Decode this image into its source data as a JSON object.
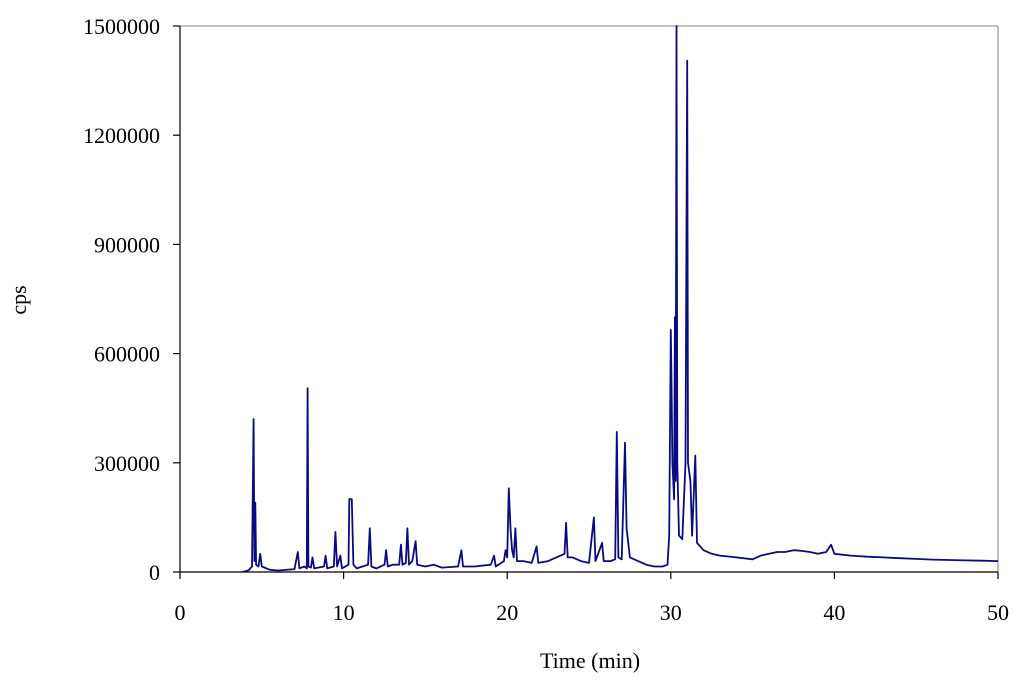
{
  "chart_data": {
    "type": "line",
    "title": "",
    "xlabel": "Time (min)",
    "ylabel": "cps",
    "xlim": [
      0,
      50
    ],
    "ylim": [
      0,
      1500000
    ],
    "xticks": [
      "0",
      "10",
      "20",
      "30",
      "40",
      "50"
    ],
    "yticks": [
      "0",
      "300000",
      "600000",
      "900000",
      "1200000",
      "1500000"
    ],
    "grid": false,
    "legend": "none",
    "colors": {
      "line": "#0b0b80",
      "frame": "#808080",
      "axis": "#000000"
    },
    "series": [
      {
        "points": [
          [
            3.8,
            0
          ],
          [
            4.0,
            2000
          ],
          [
            4.2,
            5000
          ],
          [
            4.4,
            15000
          ],
          [
            4.5,
            420000
          ],
          [
            4.55,
            30000
          ],
          [
            4.6,
            190000
          ],
          [
            4.65,
            20000
          ],
          [
            4.8,
            15000
          ],
          [
            4.9,
            50000
          ],
          [
            5.0,
            15000
          ],
          [
            5.5,
            6000
          ],
          [
            6.0,
            4000
          ],
          [
            7.0,
            8000
          ],
          [
            7.2,
            55000
          ],
          [
            7.3,
            10000
          ],
          [
            7.6,
            15000
          ],
          [
            7.75,
            10000
          ],
          [
            7.8,
            505000
          ],
          [
            7.85,
            15000
          ],
          [
            8.0,
            12000
          ],
          [
            8.1,
            40000
          ],
          [
            8.2,
            10000
          ],
          [
            8.8,
            15000
          ],
          [
            8.9,
            45000
          ],
          [
            9.0,
            10000
          ],
          [
            9.4,
            15000
          ],
          [
            9.5,
            110000
          ],
          [
            9.6,
            15000
          ],
          [
            9.8,
            45000
          ],
          [
            9.9,
            10000
          ],
          [
            10.3,
            20000
          ],
          [
            10.35,
            200000
          ],
          [
            10.45,
            200000
          ],
          [
            10.5,
            200000
          ],
          [
            10.6,
            20000
          ],
          [
            10.8,
            10000
          ],
          [
            11.5,
            20000
          ],
          [
            11.6,
            120000
          ],
          [
            11.7,
            15000
          ],
          [
            12.0,
            10000
          ],
          [
            12.5,
            20000
          ],
          [
            12.6,
            60000
          ],
          [
            12.7,
            15000
          ],
          [
            13.0,
            20000
          ],
          [
            13.4,
            20000
          ],
          [
            13.5,
            75000
          ],
          [
            13.6,
            20000
          ],
          [
            13.8,
            25000
          ],
          [
            13.9,
            120000
          ],
          [
            14.0,
            20000
          ],
          [
            14.2,
            30000
          ],
          [
            14.4,
            85000
          ],
          [
            14.5,
            20000
          ],
          [
            15.0,
            15000
          ],
          [
            15.5,
            20000
          ],
          [
            16.0,
            12000
          ],
          [
            17.0,
            15000
          ],
          [
            17.2,
            60000
          ],
          [
            17.3,
            15000
          ],
          [
            18.0,
            15000
          ],
          [
            19.0,
            20000
          ],
          [
            19.2,
            45000
          ],
          [
            19.3,
            15000
          ],
          [
            19.8,
            30000
          ],
          [
            19.9,
            60000
          ],
          [
            20.0,
            40000
          ],
          [
            20.1,
            230000
          ],
          [
            20.2,
            120000
          ],
          [
            20.3,
            60000
          ],
          [
            20.4,
            40000
          ],
          [
            20.5,
            120000
          ],
          [
            20.6,
            30000
          ],
          [
            21.0,
            30000
          ],
          [
            21.5,
            25000
          ],
          [
            21.8,
            70000
          ],
          [
            21.9,
            25000
          ],
          [
            22.5,
            30000
          ],
          [
            23.0,
            40000
          ],
          [
            23.5,
            50000
          ],
          [
            23.6,
            135000
          ],
          [
            23.7,
            40000
          ],
          [
            24.0,
            40000
          ],
          [
            24.5,
            30000
          ],
          [
            25.0,
            25000
          ],
          [
            25.3,
            150000
          ],
          [
            25.4,
            30000
          ],
          [
            25.8,
            80000
          ],
          [
            25.9,
            30000
          ],
          [
            26.3,
            30000
          ],
          [
            26.6,
            35000
          ],
          [
            26.7,
            385000
          ],
          [
            26.8,
            40000
          ],
          [
            27.0,
            35000
          ],
          [
            27.2,
            355000
          ],
          [
            27.3,
            120000
          ],
          [
            27.5,
            40000
          ],
          [
            28.0,
            30000
          ],
          [
            28.5,
            20000
          ],
          [
            29.0,
            15000
          ],
          [
            29.5,
            15000
          ],
          [
            29.8,
            20000
          ],
          [
            29.9,
            100000
          ],
          [
            30.0,
            665000
          ],
          [
            30.05,
            500000
          ],
          [
            30.1,
            300000
          ],
          [
            30.2,
            200000
          ],
          [
            30.25,
            700000
          ],
          [
            30.3,
            250000
          ],
          [
            30.35,
            1500000
          ],
          [
            30.4,
            300000
          ],
          [
            30.5,
            100000
          ],
          [
            30.7,
            90000
          ],
          [
            30.9,
            300000
          ],
          [
            31.0,
            1405000
          ],
          [
            31.05,
            300000
          ],
          [
            31.2,
            250000
          ],
          [
            31.3,
            100000
          ],
          [
            31.5,
            320000
          ],
          [
            31.6,
            80000
          ],
          [
            32.0,
            60000
          ],
          [
            32.5,
            50000
          ],
          [
            33.0,
            45000
          ],
          [
            34.0,
            40000
          ],
          [
            35.0,
            35000
          ],
          [
            35.5,
            45000
          ],
          [
            36.0,
            50000
          ],
          [
            36.5,
            55000
          ],
          [
            37.0,
            55000
          ],
          [
            37.5,
            60000
          ],
          [
            38.0,
            58000
          ],
          [
            38.5,
            55000
          ],
          [
            39.0,
            50000
          ],
          [
            39.5,
            55000
          ],
          [
            39.8,
            75000
          ],
          [
            40.0,
            50000
          ],
          [
            41.0,
            45000
          ],
          [
            42.0,
            42000
          ],
          [
            43.0,
            40000
          ],
          [
            44.0,
            38000
          ],
          [
            45.0,
            36000
          ],
          [
            46.0,
            34000
          ],
          [
            47.0,
            33000
          ],
          [
            48.0,
            32000
          ],
          [
            49.0,
            31000
          ],
          [
            50.0,
            30000
          ]
        ]
      }
    ]
  }
}
